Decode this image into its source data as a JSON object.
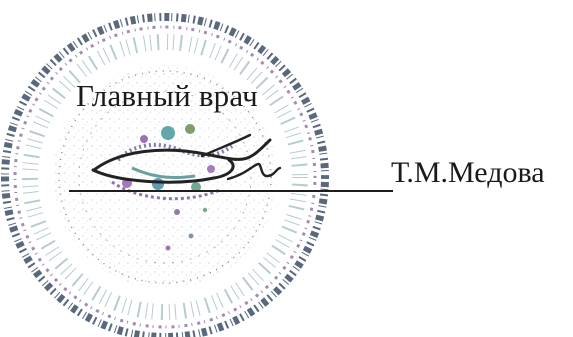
{
  "document": {
    "position_title": "Главный врач",
    "signer_name": "Т.М.Медова"
  },
  "stamp": {
    "shape": "round",
    "colors": [
      "#2d6e7d",
      "#7b3fa0",
      "#4a4a6a",
      "#3c8c62"
    ]
  }
}
